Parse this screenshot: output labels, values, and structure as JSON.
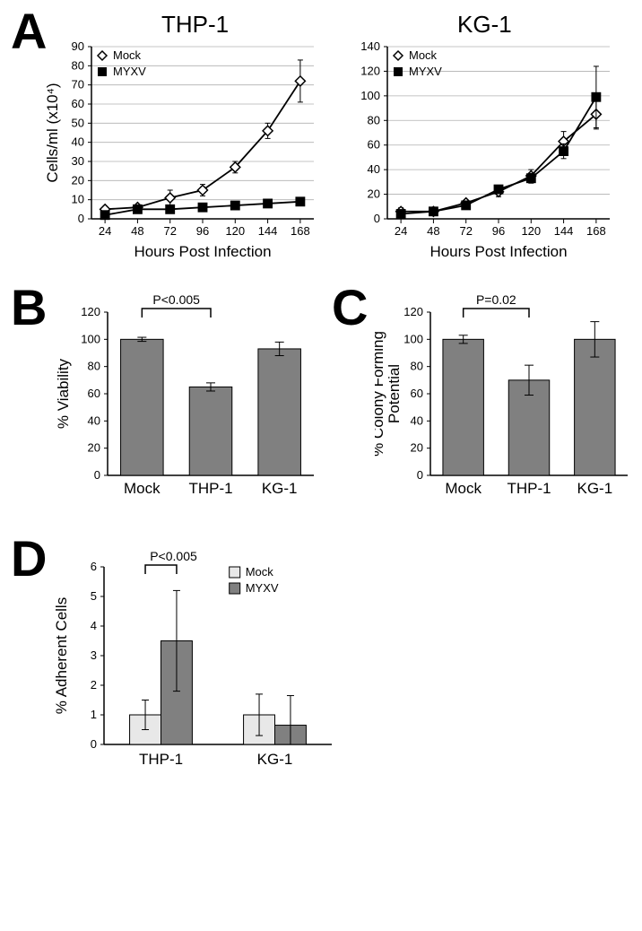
{
  "panelA": {
    "letter": "A",
    "charts": [
      {
        "title": "THP-1",
        "xlabel": "Hours Post Infection",
        "ylabel": "Cells/ml (x10⁴)",
        "x": [
          24,
          48,
          72,
          96,
          120,
          144,
          168
        ],
        "xlim": [
          14,
          178
        ],
        "ylim": [
          0,
          90
        ],
        "ytick_step": 10,
        "series": [
          {
            "name": "Mock",
            "marker": "diamond",
            "fill": "#ffffff",
            "stroke": "#000000",
            "y": [
              5,
              6,
              11,
              15,
              27,
              46,
              72
            ],
            "err": [
              1.5,
              1.5,
              4,
              3,
              3,
              4,
              11
            ]
          },
          {
            "name": "MYXV",
            "marker": "square",
            "fill": "#000000",
            "stroke": "#000000",
            "y": [
              2,
              5,
              5,
              6,
              7,
              8,
              9
            ],
            "err": [
              1,
              1,
              1,
              1,
              1,
              1,
              1.5
            ]
          }
        ]
      },
      {
        "title": "KG-1",
        "xlabel": "Hours Post Infection",
        "ylabel": "",
        "x": [
          24,
          48,
          72,
          96,
          120,
          144,
          168
        ],
        "xlim": [
          14,
          178
        ],
        "ylim": [
          0,
          140
        ],
        "ytick_step": 20,
        "series": [
          {
            "name": "Mock",
            "marker": "diamond",
            "fill": "#ffffff",
            "stroke": "#000000",
            "y": [
              6,
              6,
              13,
              22,
              35,
              63,
              85
            ],
            "err": [
              3,
              1,
              2,
              4,
              5,
              8,
              12
            ]
          },
          {
            "name": "MYXV",
            "marker": "square",
            "fill": "#000000",
            "stroke": "#000000",
            "y": [
              4,
              6,
              11,
              24,
              33,
              55,
              99
            ],
            "err": [
              1,
              1,
              2,
              3,
              4,
              6,
              25
            ]
          }
        ]
      }
    ]
  },
  "panelB": {
    "letter": "B",
    "ylabel": "% Viability",
    "categories": [
      "Mock",
      "THP-1",
      "KG-1"
    ],
    "values": [
      100,
      65,
      93
    ],
    "errors": [
      1.5,
      3,
      5
    ],
    "ylim": [
      0,
      120
    ],
    "ytick_step": 20,
    "bar_color": "#808080",
    "p_label": "P<0.005",
    "p_between": [
      0,
      1
    ]
  },
  "panelC": {
    "letter": "C",
    "ylabel": "% Colony Forming\nPotential",
    "categories": [
      "Mock",
      "THP-1",
      "KG-1"
    ],
    "values": [
      100,
      70,
      100
    ],
    "errors": [
      3,
      11,
      13
    ],
    "ylim": [
      0,
      120
    ],
    "ytick_step": 20,
    "bar_color": "#808080",
    "p_label": "P=0.02",
    "p_between": [
      0,
      1
    ]
  },
  "panelD": {
    "letter": "D",
    "ylabel": "% Adherent Cells",
    "groups": [
      "THP-1",
      "KG-1"
    ],
    "series": [
      {
        "name": "Mock",
        "color": "#e8e8e8",
        "values": [
          1.0,
          1.0
        ],
        "errors": [
          0.5,
          0.7
        ]
      },
      {
        "name": "MYXV",
        "color": "#808080",
        "values": [
          3.5,
          0.65
        ],
        "errors": [
          1.7,
          1.0
        ]
      }
    ],
    "ylim": [
      0,
      6
    ],
    "ytick_step": 1,
    "p_label": "P<0.005",
    "p_group": 0
  },
  "colors": {
    "line": "#000000",
    "error": "#000000",
    "text": "#000000",
    "grid": "#808080"
  }
}
